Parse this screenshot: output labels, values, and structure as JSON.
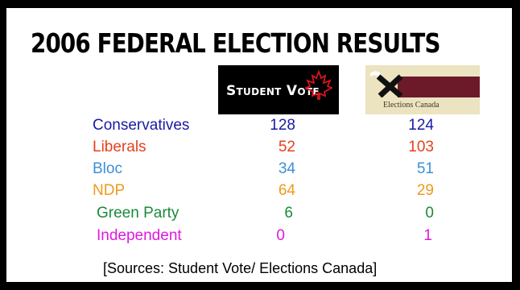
{
  "title": "2006 FEDERAL ELECTION RESULTS",
  "logos": {
    "student_vote": "Student Vote",
    "elections_canada": "Elections Canada"
  },
  "rows": [
    {
      "party": "Conservatives",
      "student_vote": "128",
      "elections_canada": "124",
      "color": "#1a1aa6"
    },
    {
      "party": "Liberals",
      "student_vote": "52",
      "elections_canada": "103",
      "color": "#e8401c"
    },
    {
      "party": "Bloc",
      "student_vote": "34",
      "elections_canada": "51",
      "color": "#3c8fd6"
    },
    {
      "party": "NDP",
      "student_vote": "64",
      "elections_canada": "29",
      "color": "#ef9a1c"
    },
    {
      "party": "Green Party",
      "student_vote": "6",
      "elections_canada": "0",
      "color": "#1a8a3a"
    },
    {
      "party": "Independent",
      "student_vote": "0",
      "elections_canada": "1",
      "color": "#e019e0"
    }
  ],
  "sources": "[Sources: Student Vote/ Elections Canada]"
}
